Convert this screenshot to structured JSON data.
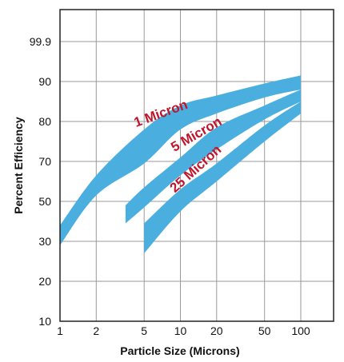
{
  "chart_data": {
    "type": "area",
    "title": "",
    "xlabel": "Particle Size (Microns)",
    "ylabel": "Percent Efficiency",
    "x_ticks": [
      "1",
      "2",
      "5",
      "10",
      "20",
      "50",
      "100"
    ],
    "y_ticks": [
      "10",
      "20",
      "30",
      "50",
      "70",
      "80",
      "90",
      "99.9"
    ],
    "grid": true,
    "colors": {
      "band": "#4aaedf",
      "label": "#c0152b",
      "grid": "#9a9a9a",
      "frame": "#222222"
    },
    "series": [
      {
        "name": "1 Micron",
        "label_rotation_deg": -20,
        "upper": [
          [
            1,
            38
          ],
          [
            2,
            63
          ],
          [
            5,
            78
          ],
          [
            10,
            84
          ],
          [
            20,
            86.5
          ],
          [
            50,
            89.5
          ],
          [
            100,
            91.5
          ]
        ],
        "lower": [
          [
            1,
            29
          ],
          [
            2,
            53
          ],
          [
            5,
            69
          ],
          [
            10,
            78
          ],
          [
            20,
            82
          ],
          [
            50,
            86
          ],
          [
            100,
            88
          ]
        ]
      },
      {
        "name": "5 Micron",
        "label_rotation_deg": -30,
        "upper": [
          [
            3.5,
            48
          ],
          [
            5,
            57
          ],
          [
            10,
            71
          ],
          [
            20,
            78.5
          ],
          [
            50,
            84
          ],
          [
            100,
            88
          ]
        ],
        "lower": [
          [
            3.5,
            39
          ],
          [
            5,
            47
          ],
          [
            10,
            63
          ],
          [
            20,
            73
          ],
          [
            50,
            80.5
          ],
          [
            100,
            85
          ]
        ]
      },
      {
        "name": "25 Micron",
        "label_rotation_deg": -42,
        "upper": [
          [
            5,
            39
          ],
          [
            10,
            56
          ],
          [
            20,
            69
          ],
          [
            50,
            79
          ],
          [
            100,
            85
          ]
        ],
        "lower": [
          [
            5,
            27
          ],
          [
            10,
            45
          ],
          [
            20,
            60
          ],
          [
            50,
            75
          ],
          [
            100,
            82
          ]
        ]
      }
    ]
  }
}
